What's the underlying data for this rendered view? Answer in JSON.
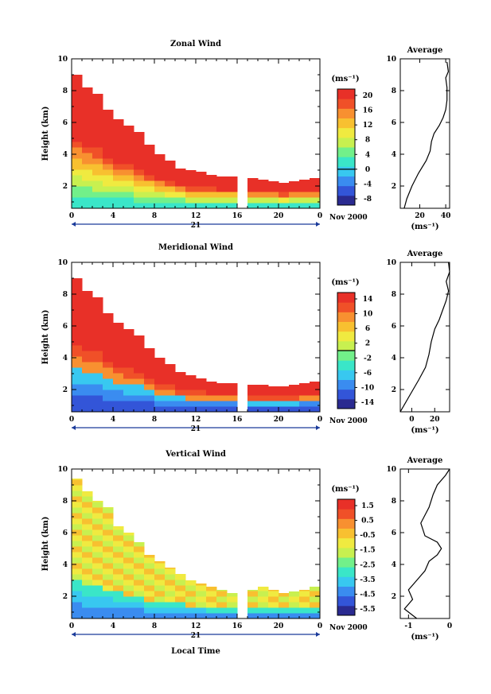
{
  "colors": {
    "scale": [
      "#2a2a90",
      "#3355d8",
      "#3a8cf0",
      "#38c8f0",
      "#3ae6c8",
      "#72f08a",
      "#c8f050",
      "#f0ea40",
      "#f8c030",
      "#f89030",
      "#f05028",
      "#e83028"
    ],
    "axis": "#000000",
    "date_axis": "#1a3a9a"
  },
  "x_axis": {
    "ticks": [
      "0",
      "4",
      "8",
      "12",
      "16",
      "20",
      "0"
    ],
    "day_label": "21",
    "date_label": "Nov 2000",
    "label": "Local Time"
  },
  "chart_data": [
    {
      "type": "heatmap",
      "title": "Zonal Wind",
      "ylabel": "Height (km)",
      "yticks": [
        "2",
        "4",
        "6",
        "8",
        "10"
      ],
      "ylim": [
        0.6,
        10
      ],
      "xlim": [
        0,
        24
      ],
      "units": "(ms⁻¹)",
      "colorbar_ticks": [
        "20",
        "16",
        "12",
        "8",
        "4",
        "0",
        "-4",
        "-8"
      ],
      "colorbar_range": [
        -10,
        22
      ],
      "zero_contour": true,
      "data_columns": [
        [
          0,
          0.6,
          9.0
        ],
        [
          1,
          0.6,
          8.2
        ],
        [
          2,
          0.6,
          7.8
        ],
        [
          3,
          0.6,
          6.8
        ],
        [
          4,
          0.6,
          6.2
        ],
        [
          5,
          0.6,
          5.8
        ],
        [
          6,
          0.6,
          5.4
        ],
        [
          7,
          0.6,
          4.6
        ],
        [
          8,
          0.6,
          4.0
        ],
        [
          9,
          0.6,
          3.6
        ],
        [
          10,
          0.6,
          3.1
        ],
        [
          11,
          0.6,
          3.0
        ],
        [
          12,
          0.6,
          2.9
        ],
        [
          13,
          0.6,
          2.7
        ],
        [
          14,
          0.6,
          2.6
        ],
        [
          15,
          0.6,
          2.6
        ],
        [
          16,
          null,
          null
        ],
        [
          17,
          0.6,
          2.5
        ],
        [
          18,
          0.6,
          2.4
        ],
        [
          19,
          0.6,
          2.3
        ],
        [
          20,
          0.6,
          2.2
        ],
        [
          21,
          0.6,
          2.3
        ],
        [
          22,
          0.6,
          2.4
        ],
        [
          23,
          0.6,
          2.5
        ]
      ],
      "profile": {
        "title": "Average",
        "xticks": [
          "20",
          "40"
        ],
        "xlim": [
          5,
          43
        ],
        "ylim": [
          0.6,
          10
        ],
        "xlabel": "(ms⁻¹)",
        "points": [
          [
            8,
            0.6
          ],
          [
            10,
            1.2
          ],
          [
            14,
            2.0
          ],
          [
            19,
            2.8
          ],
          [
            25,
            3.6
          ],
          [
            28,
            4.2
          ],
          [
            29,
            4.8
          ],
          [
            31,
            5.3
          ],
          [
            35,
            5.8
          ],
          [
            38,
            6.3
          ],
          [
            40,
            6.8
          ],
          [
            41,
            7.4
          ],
          [
            41,
            8.2
          ],
          [
            40,
            8.8
          ],
          [
            42,
            9.2
          ],
          [
            41,
            9.8
          ]
        ]
      }
    },
    {
      "type": "heatmap",
      "title": "Meridional Wind",
      "ylabel": "Height (km)",
      "yticks": [
        "2",
        "4",
        "6",
        "8",
        "10"
      ],
      "ylim": [
        0.6,
        10
      ],
      "xlim": [
        0,
        24
      ],
      "units": "(ms⁻¹)",
      "colorbar_ticks": [
        "14",
        "10",
        "6",
        "2",
        "-2",
        "-6",
        "-10",
        "-14"
      ],
      "colorbar_range": [
        -16,
        16
      ],
      "zero_contour": true,
      "data_columns": [
        [
          0,
          0.6,
          9.0
        ],
        [
          1,
          0.6,
          8.2
        ],
        [
          2,
          0.6,
          7.8
        ],
        [
          3,
          0.6,
          6.8
        ],
        [
          4,
          0.6,
          6.2
        ],
        [
          5,
          0.6,
          5.8
        ],
        [
          6,
          0.6,
          5.4
        ],
        [
          7,
          0.6,
          4.6
        ],
        [
          8,
          0.6,
          4.0
        ],
        [
          9,
          0.6,
          3.6
        ],
        [
          10,
          0.6,
          3.1
        ],
        [
          11,
          0.6,
          2.9
        ],
        [
          12,
          0.6,
          2.7
        ],
        [
          13,
          0.6,
          2.5
        ],
        [
          14,
          0.6,
          2.4
        ],
        [
          15,
          0.6,
          2.4
        ],
        [
          16,
          null,
          null
        ],
        [
          17,
          0.6,
          2.3
        ],
        [
          18,
          0.6,
          2.3
        ],
        [
          19,
          0.6,
          2.2
        ],
        [
          20,
          0.6,
          2.2
        ],
        [
          21,
          0.6,
          2.3
        ],
        [
          22,
          0.6,
          2.4
        ],
        [
          23,
          0.6,
          2.5
        ]
      ],
      "profile": {
        "title": "Average",
        "xticks": [
          "0",
          "20"
        ],
        "xlim": [
          -10,
          33
        ],
        "ylim": [
          0.6,
          10
        ],
        "xlabel": "(ms⁻¹)",
        "points": [
          [
            -10,
            0.6
          ],
          [
            -2,
            1.6
          ],
          [
            6,
            2.6
          ],
          [
            12,
            3.4
          ],
          [
            15,
            4.2
          ],
          [
            17,
            5.0
          ],
          [
            20,
            5.8
          ],
          [
            24,
            6.4
          ],
          [
            27,
            7.0
          ],
          [
            30,
            7.6
          ],
          [
            32,
            8.2
          ],
          [
            30,
            8.8
          ],
          [
            33,
            9.4
          ],
          [
            32,
            10.0
          ]
        ]
      }
    },
    {
      "type": "heatmap",
      "title": "Vertical Wind",
      "ylabel": "Height (km)",
      "yticks": [
        "2",
        "4",
        "6",
        "8",
        "10"
      ],
      "ylim": [
        0.6,
        10
      ],
      "xlim": [
        0,
        24
      ],
      "units": "(ms⁻¹)",
      "colorbar_ticks": [
        "1.5",
        "0.5",
        "-0.5",
        "-1.5",
        "-2.5",
        "-3.5",
        "-4.5",
        "-5.5"
      ],
      "colorbar_range": [
        -6.5,
        2.5
      ],
      "zero_contour": false,
      "data_columns": [
        [
          0,
          0.6,
          9.4
        ],
        [
          1,
          0.6,
          8.6
        ],
        [
          2,
          0.6,
          8.0
        ],
        [
          3,
          0.6,
          7.6
        ],
        [
          4,
          0.6,
          6.4
        ],
        [
          5,
          0.6,
          6.0
        ],
        [
          6,
          0.6,
          5.4
        ],
        [
          7,
          0.6,
          4.6
        ],
        [
          8,
          0.6,
          4.2
        ],
        [
          9,
          0.6,
          3.8
        ],
        [
          10,
          0.6,
          3.4
        ],
        [
          11,
          0.6,
          3.0
        ],
        [
          12,
          0.6,
          2.8
        ],
        [
          13,
          0.6,
          2.6
        ],
        [
          14,
          0.6,
          2.4
        ],
        [
          15,
          0.6,
          2.2
        ],
        [
          16,
          null,
          null
        ],
        [
          17,
          0.6,
          2.4
        ],
        [
          18,
          0.6,
          2.6
        ],
        [
          19,
          0.6,
          2.4
        ],
        [
          20,
          0.6,
          2.2
        ],
        [
          21,
          0.6,
          2.3
        ],
        [
          22,
          0.6,
          2.4
        ],
        [
          23,
          0.6,
          2.6
        ]
      ],
      "profile": {
        "title": "Average",
        "xticks": [
          "-1",
          "0"
        ],
        "xlim": [
          -1.2,
          0
        ],
        "ylim": [
          0.6,
          10
        ],
        "xlabel": "(ms⁻¹)",
        "points": [
          [
            -0.8,
            0.6
          ],
          [
            -1.1,
            1.2
          ],
          [
            -0.9,
            1.8
          ],
          [
            -1.0,
            2.4
          ],
          [
            -0.8,
            3.0
          ],
          [
            -0.6,
            3.6
          ],
          [
            -0.5,
            4.2
          ],
          [
            -0.3,
            4.6
          ],
          [
            -0.2,
            5.0
          ],
          [
            -0.3,
            5.4
          ],
          [
            -0.6,
            5.8
          ],
          [
            -0.7,
            6.6
          ],
          [
            -0.5,
            7.6
          ],
          [
            -0.4,
            8.4
          ],
          [
            -0.3,
            9.0
          ],
          [
            -0.1,
            9.6
          ],
          [
            0,
            10.0
          ]
        ]
      }
    }
  ]
}
